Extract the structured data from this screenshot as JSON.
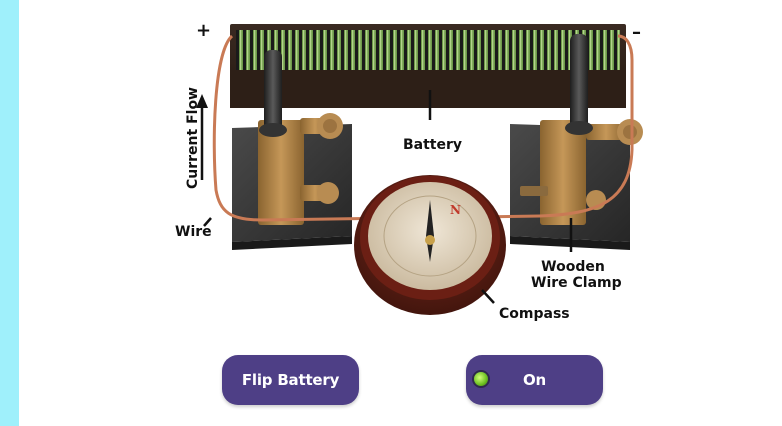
{
  "labels": {
    "plus": "+",
    "minus": "–",
    "current_flow": "Current Flow",
    "battery": "Battery",
    "wire": "Wire",
    "clamp_line1": "Wooden",
    "clamp_line2": "Wire Clamp",
    "compass": "Compass",
    "compass_n": "N"
  },
  "buttons": {
    "flip_battery": "Flip Battery",
    "on": "On"
  },
  "colors": {
    "sidebar": "#9ff0fb",
    "button_bg": "#4e3f86",
    "led": "#6abf1f",
    "wire": "#c97a55"
  }
}
